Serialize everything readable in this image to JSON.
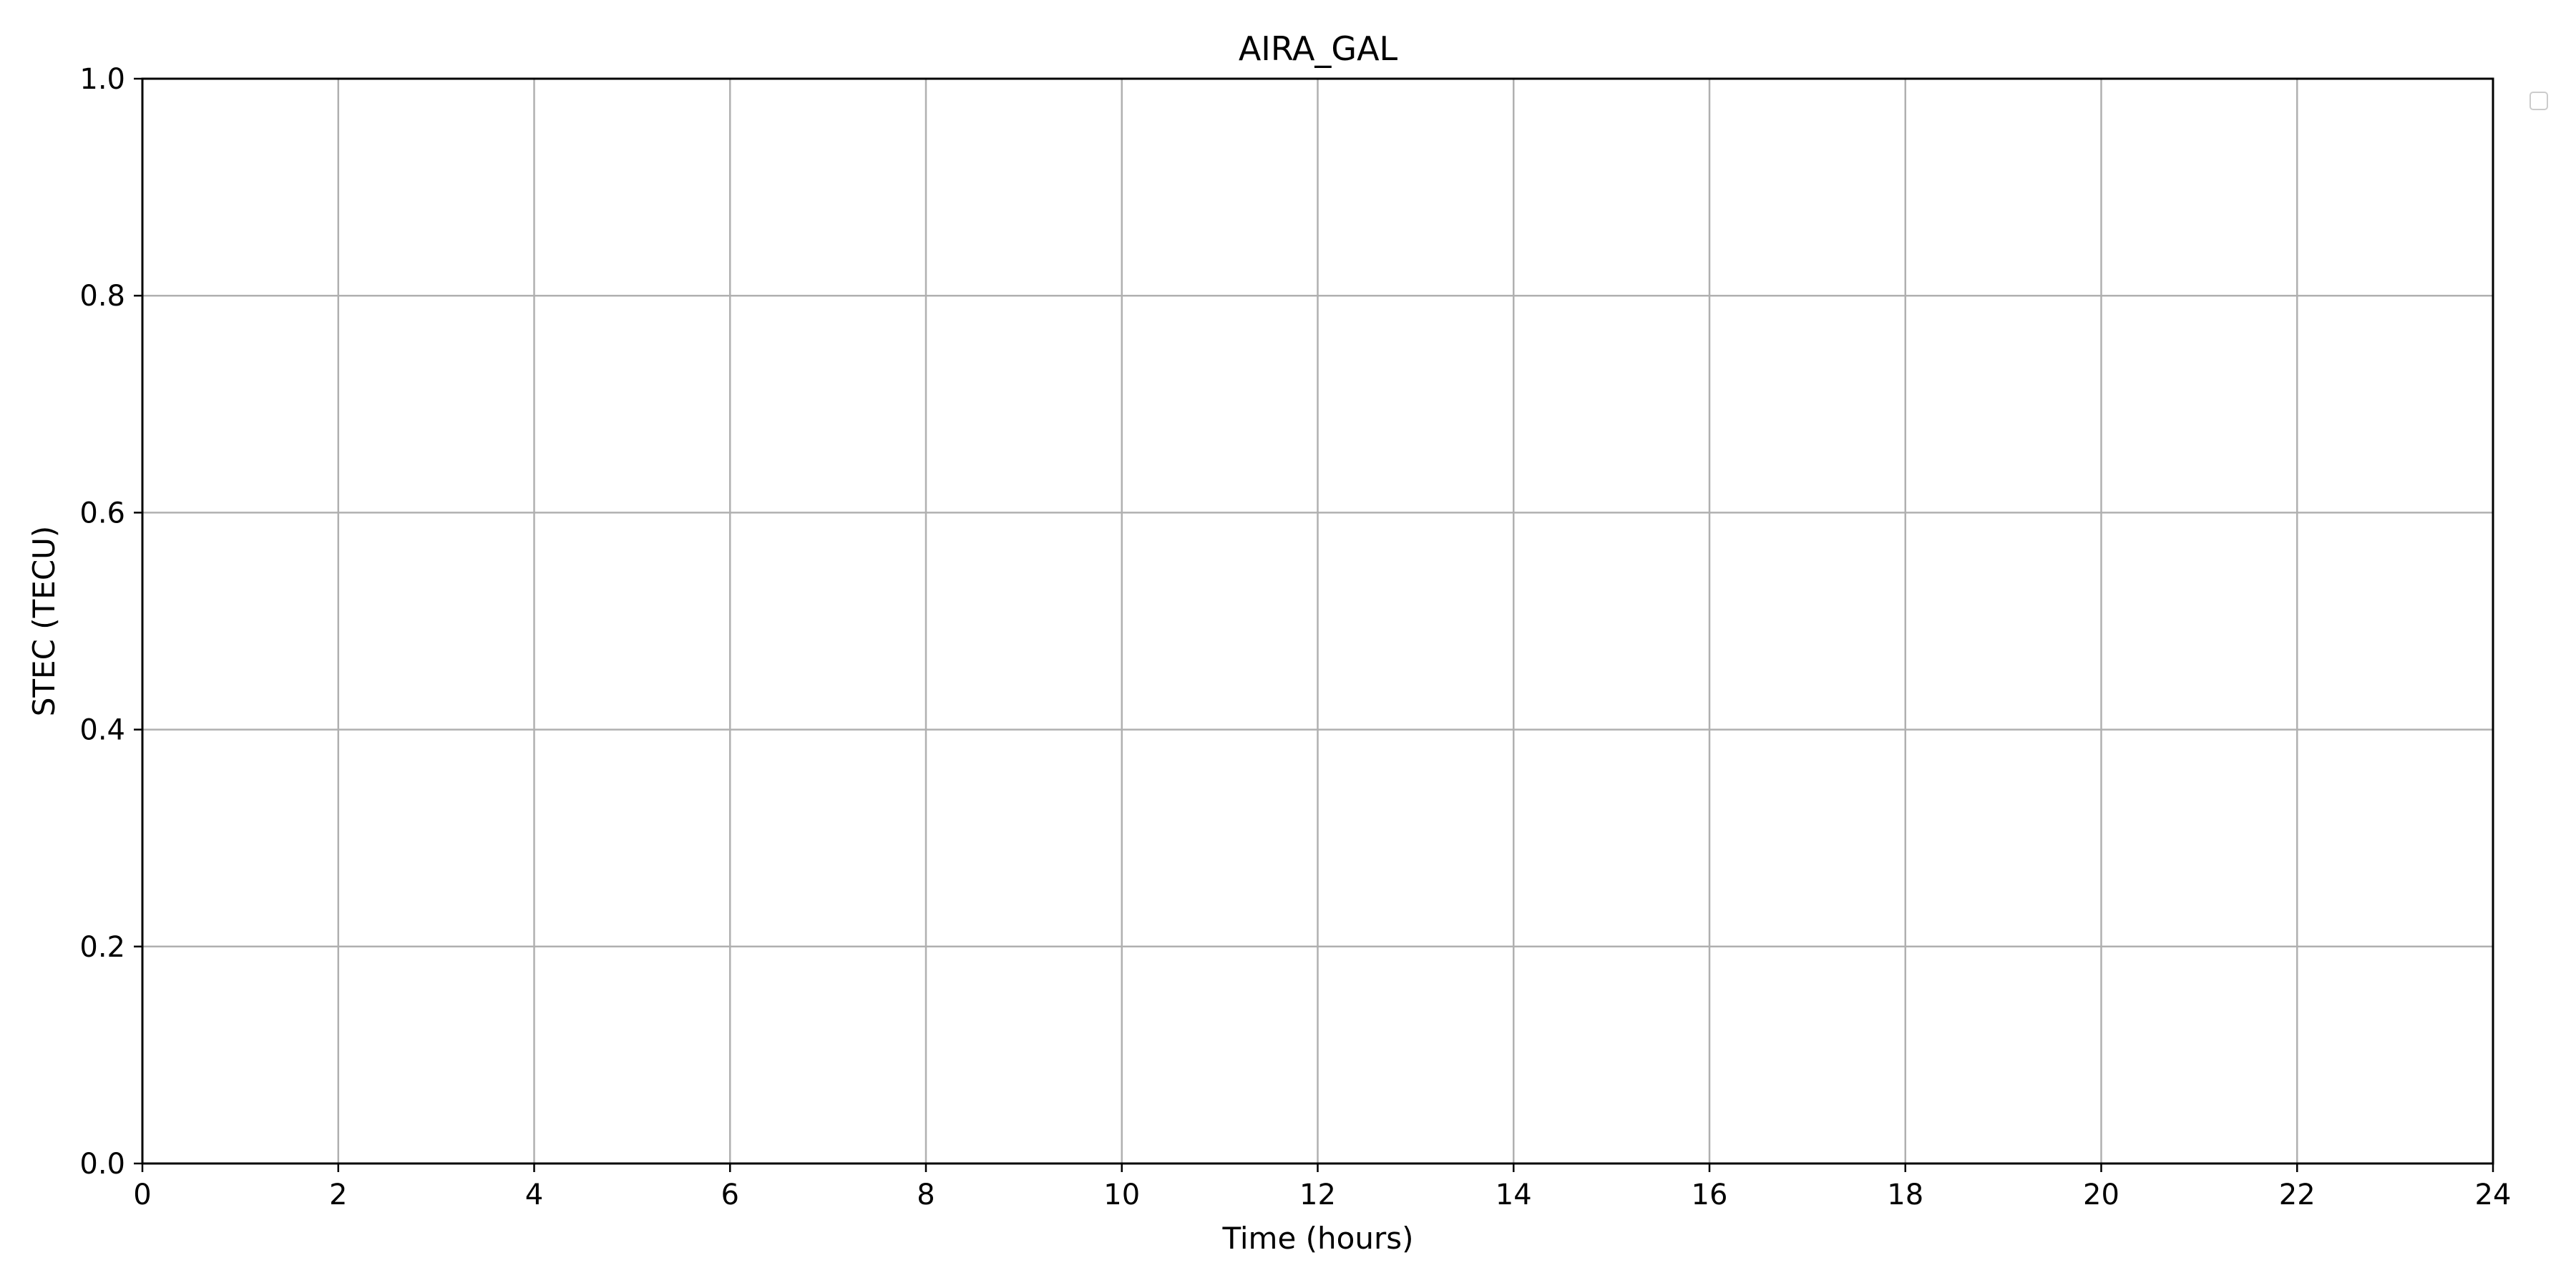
{
  "chart_data": {
    "type": "line",
    "title": "AIRA_GAL",
    "xlabel": "Time (hours)",
    "ylabel": "STEC (TECU)",
    "xlim": [
      0,
      24
    ],
    "ylim": [
      0.0,
      1.0
    ],
    "x_ticks": [
      "0",
      "2",
      "4",
      "6",
      "8",
      "10",
      "12",
      "14",
      "16",
      "18",
      "20",
      "22",
      "24"
    ],
    "y_ticks": [
      "0.0",
      "0.2",
      "0.4",
      "0.6",
      "0.8",
      "1.0"
    ],
    "grid": true,
    "legend": "outside-top-right",
    "series": [],
    "colors": {
      "grid": "#b0b0b0",
      "axes": "#000000",
      "legend_border": "#cccccc"
    }
  }
}
